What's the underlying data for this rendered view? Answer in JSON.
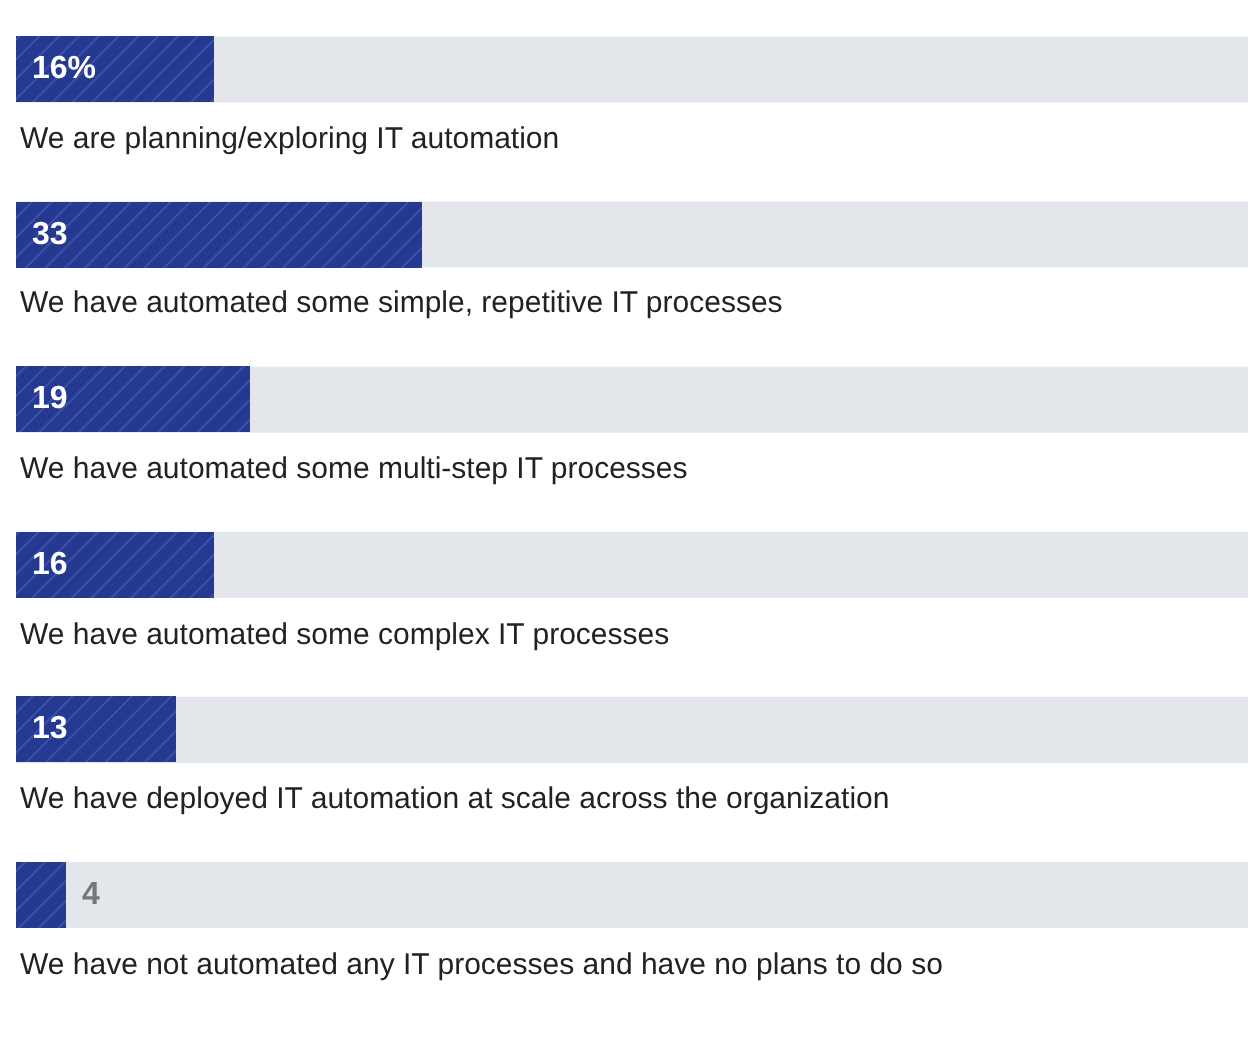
{
  "chart_data": {
    "type": "bar",
    "orientation": "horizontal",
    "categories": [
      "We are planning/exploring IT automation",
      "We have automated some simple, repetitive IT processes",
      "We have automated some multi-step IT processes",
      "We have automated some complex IT processes",
      "We have deployed IT automation at scale across the organization",
      "We have not automated any IT processes and have no plans to do so"
    ],
    "values": [
      16,
      33,
      19,
      16,
      13,
      4
    ],
    "value_labels": [
      "16%",
      "33",
      "19",
      "16",
      "13",
      "4"
    ],
    "color": "#24398f",
    "xlim": [
      0,
      100
    ],
    "tick_labels": "y",
    "legend": false
  }
}
